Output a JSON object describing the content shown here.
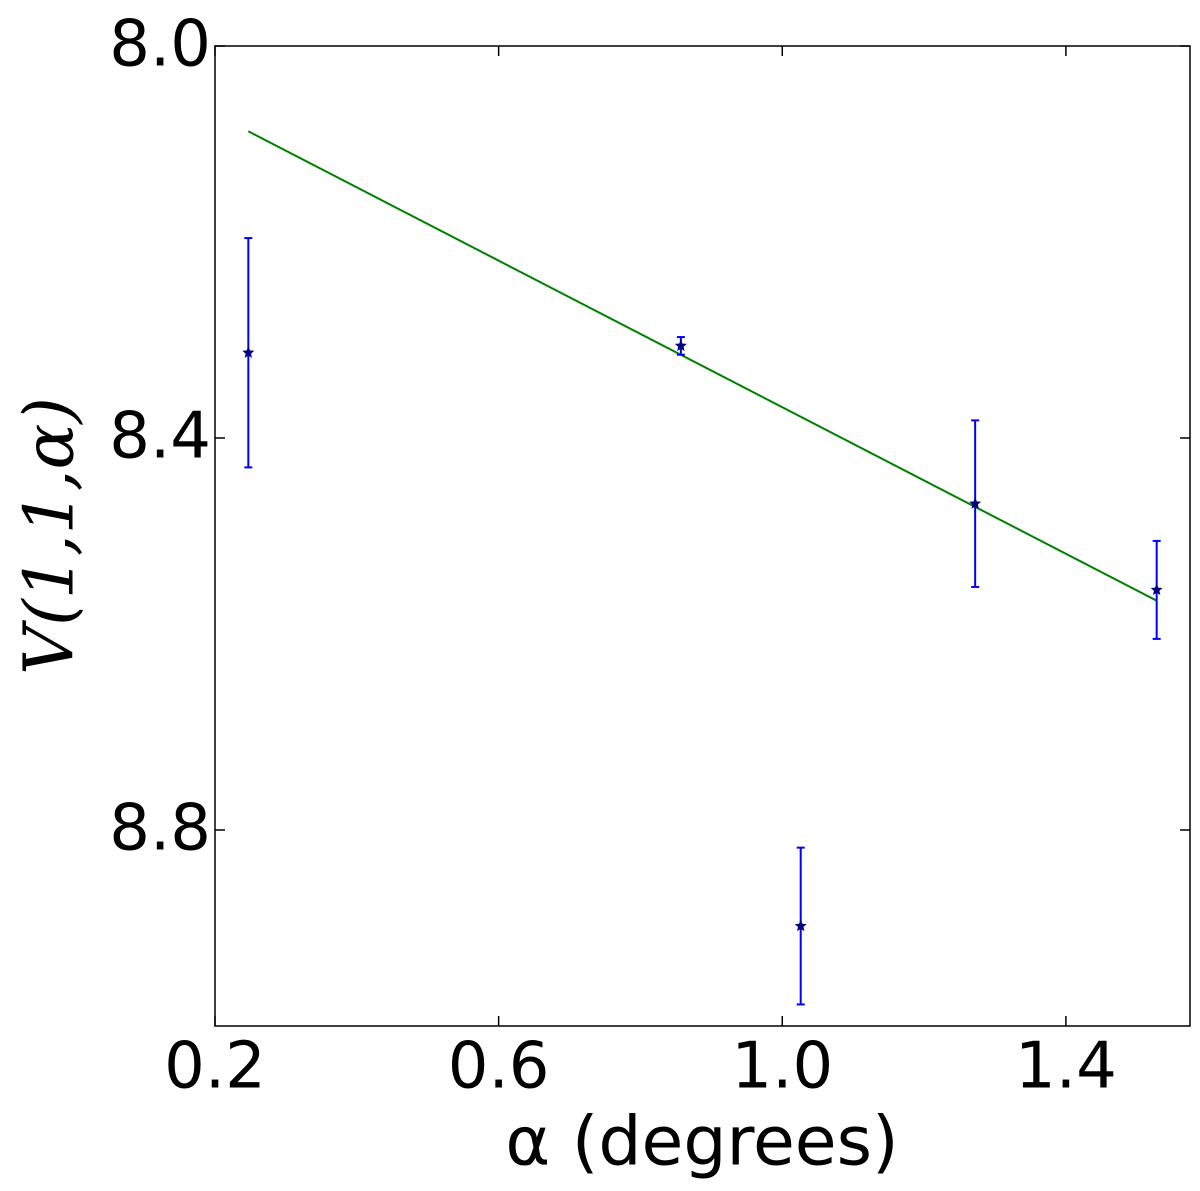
{
  "chart_data": {
    "type": "errorbar",
    "x_label": "α (degrees)",
    "y_label": "V(1,1,α)",
    "xlim": [
      0.2,
      1.575
    ],
    "ylim": [
      8.0,
      9.0
    ],
    "y_inverted": true,
    "xticks": [
      0.2,
      0.6,
      {
        "value": 1,
        "label": "1.0"
      },
      1.4
    ],
    "yticks": [
      {
        "value": 8,
        "label": "8.0"
      },
      8.4,
      8.8
    ],
    "points": {
      "x": [
        0.247,
        0.857,
        1.026,
        1.272,
        1.528
      ],
      "values": [
        8.313,
        8.306,
        8.898,
        8.467,
        8.555
      ],
      "errors": [
        0.117,
        0.009,
        0.08,
        0.085,
        0.05
      ],
      "color": "#0000ff",
      "marker_color": "#000080"
    },
    "fit": {
      "x": [
        0.247,
        1.528
      ],
      "values": [
        8.087,
        8.566
      ],
      "color": "#008000"
    }
  }
}
